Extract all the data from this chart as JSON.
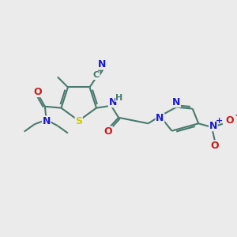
{
  "bg_color": "#ebebeb",
  "bond_color": "#4a7a6e",
  "bond_width": 1.5,
  "atom_colors": {
    "N": "#1a1acc",
    "O": "#cc1a1a",
    "S": "#cccc00",
    "C": "#4a7a6e",
    "H": "#4a7a6e"
  },
  "font_size": 9,
  "scale": 1.0
}
